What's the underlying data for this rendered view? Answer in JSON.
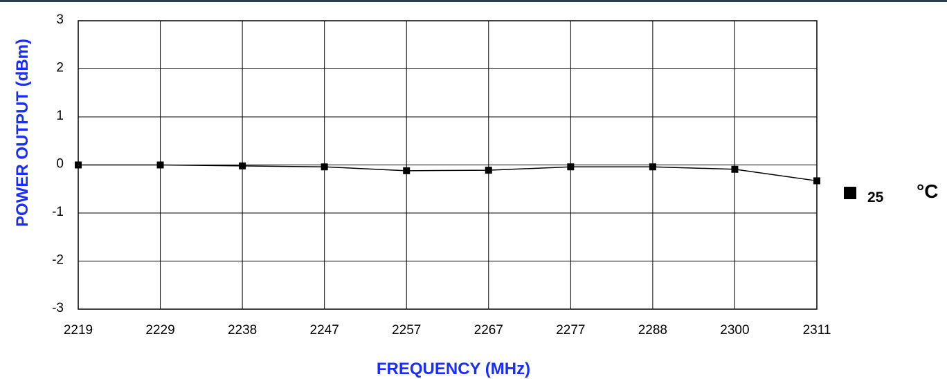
{
  "colors": {
    "top_rule": "#2f3e4f",
    "axis_title": "#1a2dff",
    "grid": "#000000",
    "series": "#000000"
  },
  "chart_data": {
    "type": "line",
    "xlabel": "FREQUENCY (MHz)",
    "ylabel": "POWER OUTPUT (dBm)",
    "categories": [
      "2219",
      "2229",
      "2238",
      "2247",
      "2257",
      "2267",
      "2277",
      "2288",
      "2300",
      "2311"
    ],
    "ylim": [
      -3,
      3
    ],
    "yticks": [
      3,
      2,
      1,
      0,
      -1,
      -2,
      -3
    ],
    "grid": true,
    "legend_position": "right",
    "series": [
      {
        "name": "25",
        "values": [
          0.0,
          0.0,
          -0.02,
          -0.04,
          -0.12,
          -0.11,
          -0.04,
          -0.04,
          -0.09,
          -0.33
        ]
      }
    ],
    "legend_unit": "°C"
  }
}
